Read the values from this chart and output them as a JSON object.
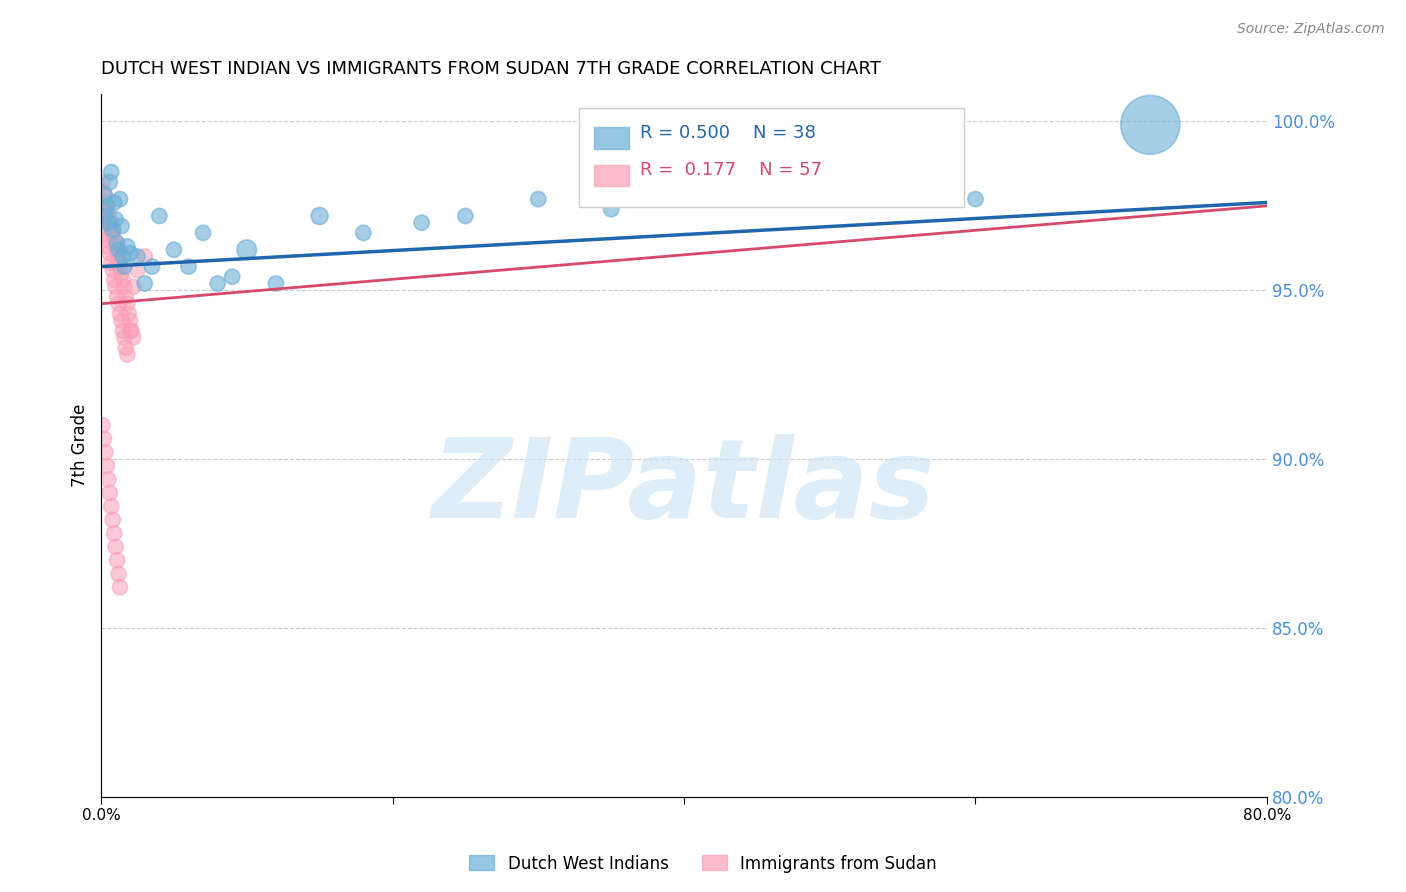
{
  "title": "DUTCH WEST INDIAN VS IMMIGRANTS FROM SUDAN 7TH GRADE CORRELATION CHART",
  "source": "Source: ZipAtlas.com",
  "ylabel": "7th Grade",
  "watermark": "ZIPatlas",
  "xmin": 0.0,
  "xmax": 0.8,
  "ymin": 0.8,
  "ymax": 1.008,
  "yticks": [
    0.8,
    0.85,
    0.9,
    0.95,
    1.0
  ],
  "ytick_labels": [
    "80.0%",
    "85.0%",
    "90.0%",
    "95.0%",
    "100.0%"
  ],
  "xticks": [
    0.0,
    0.2,
    0.4,
    0.6,
    0.8
  ],
  "xtick_labels": [
    "0.0%",
    "",
    "",
    "",
    "80.0%"
  ],
  "legend_blue_label": "Dutch West Indians",
  "legend_pink_label": "Immigrants from Sudan",
  "R_blue": 0.5,
  "N_blue": 38,
  "R_pink": 0.177,
  "N_pink": 57,
  "blue_color": "#6baed6",
  "pink_color": "#fa9fb5",
  "blue_line_color": "#2166ac",
  "pink_line_color": "#d6496a",
  "blue_trend": [
    0.957,
    0.976
  ],
  "pink_trend": [
    0.946,
    0.975
  ],
  "blue_points_x": [
    0.002,
    0.003,
    0.004,
    0.005,
    0.006,
    0.007,
    0.008,
    0.009,
    0.01,
    0.011,
    0.012,
    0.013,
    0.014,
    0.015,
    0.016,
    0.018,
    0.02,
    0.025,
    0.03,
    0.035,
    0.04,
    0.05,
    0.06,
    0.07,
    0.08,
    0.09,
    0.1,
    0.12,
    0.15,
    0.18,
    0.22,
    0.25,
    0.3,
    0.35,
    0.4,
    0.45,
    0.6,
    0.72
  ],
  "blue_points_y": [
    0.978,
    0.972,
    0.975,
    0.97,
    0.982,
    0.985,
    0.968,
    0.976,
    0.971,
    0.964,
    0.962,
    0.977,
    0.969,
    0.96,
    0.957,
    0.963,
    0.961,
    0.96,
    0.952,
    0.957,
    0.972,
    0.962,
    0.957,
    0.967,
    0.952,
    0.954,
    0.962,
    0.952,
    0.972,
    0.967,
    0.97,
    0.972,
    0.977,
    0.974,
    0.98,
    0.977,
    0.977,
    0.999
  ],
  "blue_sizes": [
    150,
    120,
    120,
    130,
    120,
    120,
    130,
    120,
    120,
    120,
    120,
    120,
    120,
    120,
    120,
    120,
    120,
    120,
    120,
    120,
    120,
    120,
    120,
    120,
    120,
    120,
    200,
    120,
    150,
    120,
    120,
    120,
    120,
    120,
    120,
    120,
    120,
    1800
  ],
  "pink_points_x": [
    0.001,
    0.002,
    0.003,
    0.004,
    0.005,
    0.006,
    0.007,
    0.008,
    0.009,
    0.01,
    0.011,
    0.012,
    0.013,
    0.014,
    0.015,
    0.016,
    0.017,
    0.018,
    0.019,
    0.02,
    0.021,
    0.022,
    0.001,
    0.002,
    0.003,
    0.004,
    0.005,
    0.006,
    0.007,
    0.008,
    0.009,
    0.01,
    0.011,
    0.012,
    0.013,
    0.014,
    0.015,
    0.016,
    0.017,
    0.018,
    0.02,
    0.022,
    0.025,
    0.03,
    0.001,
    0.002,
    0.003,
    0.004,
    0.005,
    0.006,
    0.007,
    0.008,
    0.009,
    0.01,
    0.011,
    0.012,
    0.013
  ],
  "pink_points_y": [
    0.982,
    0.979,
    0.976,
    0.975,
    0.973,
    0.971,
    0.969,
    0.967,
    0.965,
    0.963,
    0.961,
    0.959,
    0.957,
    0.955,
    0.953,
    0.951,
    0.948,
    0.946,
    0.943,
    0.941,
    0.938,
    0.936,
    0.971,
    0.969,
    0.967,
    0.965,
    0.963,
    0.961,
    0.958,
    0.956,
    0.953,
    0.951,
    0.948,
    0.946,
    0.943,
    0.941,
    0.938,
    0.936,
    0.933,
    0.931,
    0.938,
    0.951,
    0.956,
    0.96,
    0.91,
    0.906,
    0.902,
    0.898,
    0.894,
    0.89,
    0.886,
    0.882,
    0.878,
    0.874,
    0.87,
    0.866,
    0.862
  ],
  "pink_sizes": [
    120,
    120,
    120,
    120,
    120,
    120,
    120,
    120,
    120,
    120,
    120,
    120,
    120,
    120,
    120,
    120,
    120,
    120,
    120,
    120,
    120,
    120,
    120,
    120,
    120,
    120,
    120,
    120,
    120,
    120,
    120,
    120,
    120,
    120,
    120,
    120,
    120,
    120,
    120,
    120,
    120,
    120,
    120,
    120,
    120,
    120,
    120,
    120,
    120,
    120,
    120,
    120,
    120,
    120,
    120,
    120,
    120
  ]
}
